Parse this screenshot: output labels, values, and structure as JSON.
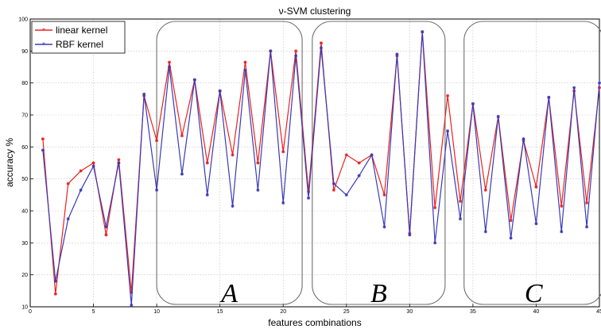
{
  "chart_data": {
    "type": "line",
    "title": "ν-SVM clustering",
    "xlabel": "features combinations",
    "ylabel": "accuracy %",
    "xlim": [
      0,
      45
    ],
    "ylim": [
      10,
      100
    ],
    "x_ticks": [
      0,
      5,
      10,
      15,
      20,
      25,
      30,
      35,
      40,
      45
    ],
    "y_ticks": [
      10,
      20,
      30,
      40,
      50,
      60,
      70,
      80,
      90,
      100
    ],
    "grid": true,
    "legend_position": "top-left",
    "x": [
      1,
      2,
      3,
      4,
      5,
      6,
      7,
      8,
      9,
      10,
      11,
      12,
      13,
      14,
      15,
      16,
      17,
      18,
      19,
      20,
      21,
      22,
      23,
      24,
      25,
      26,
      27,
      28,
      29,
      30,
      31,
      32,
      33,
      34,
      35,
      36,
      37,
      38,
      39,
      40,
      41,
      42,
      43,
      44,
      45
    ],
    "series": [
      {
        "name": "linear kernel",
        "color": "#e8231f",
        "values": [
          62.5,
          14,
          48.5,
          52.5,
          55,
          32.5,
          56,
          14.5,
          76,
          62,
          86.5,
          63.5,
          81,
          55,
          77.5,
          57.5,
          86.5,
          55,
          90,
          58.5,
          90,
          46,
          92.5,
          46.5,
          57.5,
          55,
          57.5,
          45,
          88.5,
          33,
          96,
          41,
          76,
          43,
          73.5,
          46.5,
          69.5,
          37,
          62,
          47.5,
          75.5,
          41.5,
          77.5,
          42.5,
          78.5
        ]
      },
      {
        "name": "RBF kernel",
        "color": "#3a3ab8",
        "values": [
          59,
          18,
          37.5,
          46.5,
          54,
          35,
          55,
          10.5,
          76.5,
          46.5,
          85,
          51.5,
          81,
          45,
          77.5,
          41.5,
          84,
          46.5,
          90,
          42.5,
          88.5,
          44,
          91,
          48.5,
          45,
          51,
          57.5,
          35,
          89,
          32.5,
          96,
          30,
          65,
          37.5,
          73.5,
          33.5,
          69.5,
          31.5,
          62.5,
          36,
          75.5,
          33.5,
          78.5,
          35,
          80
        ]
      }
    ],
    "annotations": [
      "A",
      "B",
      "C"
    ],
    "regions": [
      {
        "label": "A",
        "x_range": [
          10,
          21.5
        ]
      },
      {
        "label": "B",
        "x_range": [
          22.3,
          32.8
        ]
      },
      {
        "label": "C",
        "x_range": [
          34.3,
          45.3
        ]
      }
    ]
  }
}
